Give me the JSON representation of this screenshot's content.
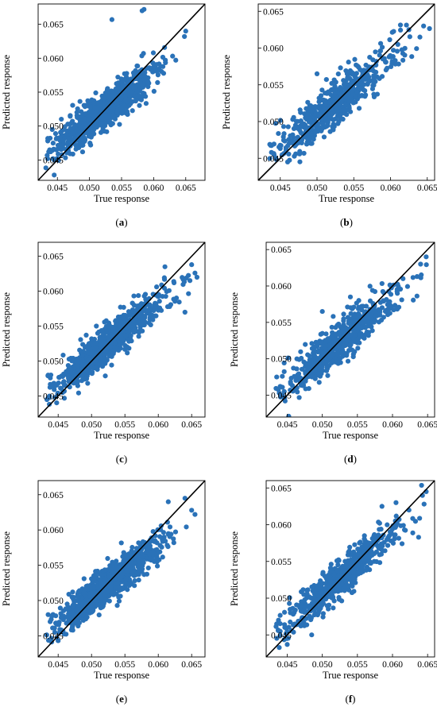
{
  "figure": {
    "marker_color": "#2a72b8",
    "line_color": "#000000"
  },
  "chart_data": [
    {
      "type": "scatter",
      "panel": "a",
      "caption": "(a)",
      "xlabel": "True response",
      "ylabel": "Predicted response",
      "xlim": [
        0.042,
        0.068
      ],
      "ylim": [
        0.042,
        0.068
      ],
      "xticks": [
        "0.045",
        "0.050",
        "0.055",
        "0.060",
        "0.065"
      ],
      "yticks": [
        "0.045",
        "0.050",
        "0.055",
        "0.060",
        "0.065"
      ],
      "reference_line": "y = x",
      "n_points": 950,
      "point_model": {
        "slope": 0.72,
        "intercept": 0.0146,
        "spread": 0.0014
      },
      "points": [
        [
          0.0585,
          0.0672
        ],
        [
          0.0582,
          0.067
        ],
        [
          0.0535,
          0.0657
        ],
        [
          0.0435,
          0.0478
        ],
        [
          0.0438,
          0.0465
        ],
        [
          0.0445,
          0.045
        ],
        [
          0.065,
          0.064
        ],
        [
          0.0648,
          0.0632
        ]
      ]
    },
    {
      "type": "scatter",
      "panel": "b",
      "caption": "(b)",
      "xlabel": "True response",
      "ylabel": "Predicted response",
      "xlim": [
        0.042,
        0.066
      ],
      "ylim": [
        0.042,
        0.066
      ],
      "xticks": [
        "0.045",
        "0.050",
        "0.055",
        "0.060",
        "0.065"
      ],
      "yticks": [
        "0.045",
        "0.050",
        "0.055",
        "0.060",
        "0.065"
      ],
      "reference_line": "y = x",
      "n_points": 620,
      "point_model": {
        "slope": 0.8,
        "intercept": 0.0105,
        "spread": 0.0015
      },
      "points": [
        [
          0.05,
          0.0565
        ],
        [
          0.0438,
          0.0458
        ],
        [
          0.0445,
          0.0448
        ],
        [
          0.0645,
          0.063
        ],
        [
          0.064,
          0.0615
        ],
        [
          0.046,
          0.0445
        ],
        [
          0.061,
          0.0605
        ],
        [
          0.0625,
          0.0625
        ]
      ]
    },
    {
      "type": "scatter",
      "panel": "c",
      "caption": "(c)",
      "xlabel": "True response",
      "ylabel": "Predicted response",
      "xlim": [
        0.042,
        0.067
      ],
      "ylim": [
        0.042,
        0.067
      ],
      "xticks": [
        "0.045",
        "0.050",
        "0.055",
        "0.060",
        "0.065"
      ],
      "yticks": [
        "0.045",
        "0.050",
        "0.055",
        "0.060",
        "0.065"
      ],
      "reference_line": "y = x",
      "n_points": 950,
      "point_model": {
        "slope": 0.78,
        "intercept": 0.0115,
        "spread": 0.0013
      },
      "points": [
        [
          0.0655,
          0.0626
        ],
        [
          0.0658,
          0.062
        ],
        [
          0.064,
          0.057
        ],
        [
          0.0435,
          0.048
        ],
        [
          0.0437,
          0.045
        ],
        [
          0.0445,
          0.0448
        ],
        [
          0.061,
          0.0635
        ],
        [
          0.065,
          0.0638
        ]
      ]
    },
    {
      "type": "scatter",
      "panel": "d",
      "caption": "(d)",
      "xlabel": "True response",
      "ylabel": "Predicted response",
      "xlim": [
        0.042,
        0.066
      ],
      "ylim": [
        0.042,
        0.066
      ],
      "xticks": [
        "0.045",
        "0.050",
        "0.055",
        "0.060",
        "0.065"
      ],
      "yticks": [
        "0.045",
        "0.050",
        "0.055",
        "0.060",
        "0.065"
      ],
      "reference_line": "y = x",
      "n_points": 620,
      "point_model": {
        "slope": 0.8,
        "intercept": 0.0103,
        "spread": 0.0014
      },
      "points": [
        [
          0.05,
          0.0565
        ],
        [
          0.0435,
          0.0475
        ],
        [
          0.044,
          0.0462
        ],
        [
          0.0443,
          0.045
        ],
        [
          0.0447,
          0.0442
        ],
        [
          0.0648,
          0.064
        ],
        [
          0.064,
          0.063
        ],
        [
          0.0615,
          0.061
        ]
      ]
    },
    {
      "type": "scatter",
      "panel": "e",
      "caption": "(e)",
      "xlabel": "True response",
      "ylabel": "Predicted response",
      "xlim": [
        0.042,
        0.067
      ],
      "ylim": [
        0.042,
        0.067
      ],
      "xticks": [
        "0.045",
        "0.050",
        "0.055",
        "0.060",
        "0.065"
      ],
      "yticks": [
        "0.045",
        "0.050",
        "0.055",
        "0.060",
        "0.065"
      ],
      "reference_line": "y = x",
      "n_points": 950,
      "point_model": {
        "slope": 0.74,
        "intercept": 0.0135,
        "spread": 0.0013
      },
      "points": [
        [
          0.0655,
          0.0622
        ],
        [
          0.065,
          0.0628
        ],
        [
          0.0435,
          0.048
        ],
        [
          0.0438,
          0.047
        ],
        [
          0.0445,
          0.0455
        ],
        [
          0.045,
          0.0443
        ],
        [
          0.064,
          0.0645
        ],
        [
          0.0615,
          0.064
        ]
      ]
    },
    {
      "type": "scatter",
      "panel": "f",
      "caption": "(f)",
      "xlabel": "True response",
      "ylabel": "Predicted response",
      "xlim": [
        0.042,
        0.066
      ],
      "ylim": [
        0.042,
        0.066
      ],
      "xticks": [
        "0.045",
        "0.050",
        "0.055",
        "0.060",
        "0.065"
      ],
      "yticks": [
        "0.045",
        "0.050",
        "0.055",
        "0.060",
        "0.065"
      ],
      "reference_line": "y = x",
      "n_points": 620,
      "point_model": {
        "slope": 0.82,
        "intercept": 0.0095,
        "spread": 0.0013
      },
      "points": [
        [
          0.045,
          0.0437
        ],
        [
          0.0435,
          0.0465
        ],
        [
          0.044,
          0.0455
        ],
        [
          0.0648,
          0.0645
        ],
        [
          0.0645,
          0.0628
        ],
        [
          0.0605,
          0.063
        ],
        [
          0.0585,
          0.0625
        ],
        [
          0.056,
          0.0585
        ]
      ]
    }
  ]
}
